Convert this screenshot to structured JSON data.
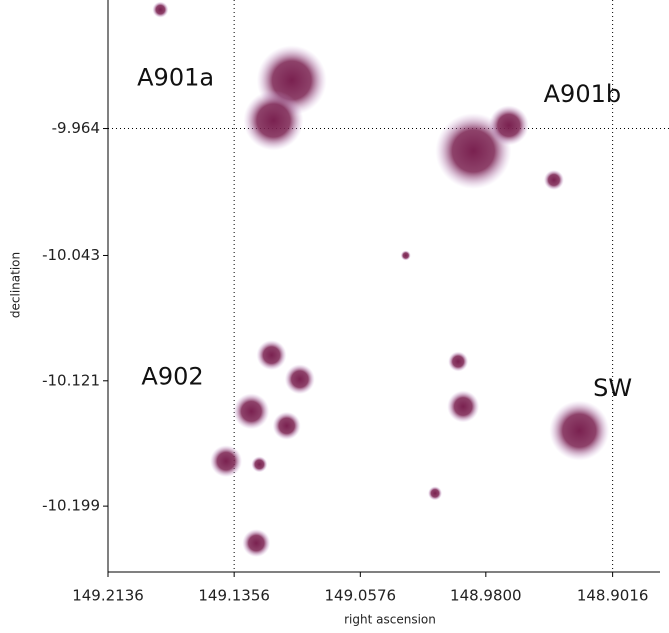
{
  "chart_data": {
    "type": "scatter",
    "xlabel": "right ascension",
    "ylabel": "declination",
    "xlim": [
      149.2136,
      148.8754
    ],
    "ylim": [
      -10.24,
      -9.884
    ],
    "xticks": [
      149.2136,
      149.1356,
      149.0576,
      {
        "value": 148.98,
        "label": "148.9800"
      },
      148.9016
    ],
    "yticks": [
      -9.964,
      -10.043,
      -10.121,
      -10.199
    ],
    "xgrid": [
      149.1356,
      148.9016
    ],
    "ygrid": [
      -9.964
    ],
    "color": "#7a2150",
    "x": [
      149.1,
      149.1113,
      148.9877,
      148.9658,
      148.9379,
      149.0295,
      149.1125,
      149.095,
      149.125,
      149.1031,
      149.1406,
      149.12,
      149.1219,
      148.9971,
      148.994,
      149.0114,
      148.9222,
      149.1812
    ],
    "y": [
      -9.934,
      -9.959,
      -9.978,
      -9.962,
      -9.996,
      -10.043,
      -10.105,
      -10.12,
      -10.14,
      -10.149,
      -10.171,
      -10.173,
      -10.222,
      -10.109,
      -10.137,
      -10.191,
      -10.152,
      -9.89
    ],
    "sizes": [
      35,
      30,
      38,
      20,
      10,
      5,
      15,
      15,
      18,
      14,
      16,
      8,
      14,
      10,
      16,
      7,
      30,
      8
    ],
    "annotations": [
      {
        "text": "A901a",
        "x": 149.1718,
        "y": -9.933
      },
      {
        "text": "A901b",
        "x": 148.9203,
        "y": -9.943
      },
      {
        "text": "A902",
        "x": 149.1737,
        "y": -10.119
      },
      {
        "text": "SW",
        "x": 148.9016,
        "y": -10.126
      }
    ]
  }
}
